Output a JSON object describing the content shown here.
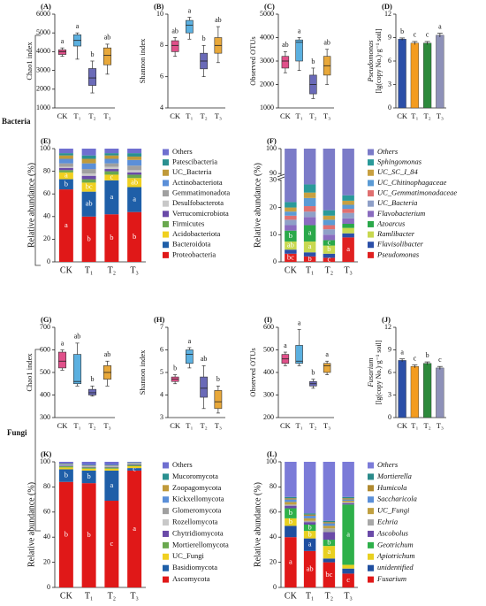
{
  "side_labels": [
    "Bacteria",
    "Fungi"
  ],
  "chart_data": [
    {
      "type": "box",
      "panel": "(A)",
      "ylabel": "Chao1 index",
      "categories": [
        "CK",
        "T₁",
        "T₂",
        "T₃"
      ],
      "colors": [
        "#e0508a",
        "#5bb0e0",
        "#6a6ab8",
        "#e8a83a"
      ],
      "ylim": [
        1000,
        6000
      ],
      "yticks": [
        1000,
        2000,
        3000,
        4000,
        5000,
        6000
      ],
      "stats": [
        {
          "min": 3750,
          "q1": 3850,
          "median": 4000,
          "q3": 4100,
          "max": 4200
        },
        {
          "min": 3600,
          "q1": 4300,
          "median": 4600,
          "q3": 4900,
          "max": 5000
        },
        {
          "min": 1800,
          "q1": 2200,
          "median": 2600,
          "q3": 3100,
          "max": 3500
        },
        {
          "min": 2800,
          "q1": 3300,
          "median": 3800,
          "q3": 4200,
          "max": 4400
        }
      ],
      "letters": [
        "a",
        "a",
        "b",
        "ab"
      ]
    },
    {
      "type": "box",
      "panel": "(B)",
      "ylabel": "Shannon index",
      "categories": [
        "CK",
        "T₁",
        "T₂",
        "T₃"
      ],
      "colors": [
        "#e0508a",
        "#5bb0e0",
        "#6a6ab8",
        "#e8a83a"
      ],
      "ylim": [
        4,
        10
      ],
      "yticks": [
        4,
        6,
        8,
        10
      ],
      "stats": [
        {
          "min": 7.3,
          "q1": 7.6,
          "median": 8,
          "q3": 8.3,
          "max": 8.5
        },
        {
          "min": 8.4,
          "q1": 8.8,
          "median": 9.3,
          "q3": 9.6,
          "max": 9.8
        },
        {
          "min": 6,
          "q1": 6.5,
          "median": 7,
          "q3": 7.5,
          "max": 8
        },
        {
          "min": 6.9,
          "q1": 7.5,
          "median": 8,
          "q3": 8.5,
          "max": 9.2
        }
      ],
      "letters": [
        "ab",
        "a",
        "b",
        "ab"
      ]
    },
    {
      "type": "box",
      "panel": "(C)",
      "ylabel": "Observed OTUs",
      "categories": [
        "CK",
        "T₁",
        "T₂",
        "T₃"
      ],
      "colors": [
        "#e0508a",
        "#5bb0e0",
        "#6a6ab8",
        "#e8a83a"
      ],
      "ylim": [
        1000,
        5000
      ],
      "yticks": [
        1000,
        2000,
        3000,
        4000,
        5000
      ],
      "stats": [
        {
          "min": 2500,
          "q1": 2700,
          "median": 3000,
          "q3": 3200,
          "max": 3400
        },
        {
          "min": 2600,
          "q1": 3000,
          "median": 3800,
          "q3": 3900,
          "max": 4000
        },
        {
          "min": 1400,
          "q1": 1600,
          "median": 2000,
          "q3": 2400,
          "max": 2700
        },
        {
          "min": 2000,
          "q1": 2400,
          "median": 2800,
          "q3": 3200,
          "max": 3500
        }
      ],
      "letters": [
        "ab",
        "a",
        "b",
        "ab"
      ]
    },
    {
      "type": "bar",
      "panel": "(D)",
      "ylabel": "Pseudomonas",
      "ylabel_unit": "[lg(copy No.)·g⁻¹ soil]",
      "categories": [
        "CK",
        "T₁",
        "T₂",
        "T₃"
      ],
      "colors": [
        "#2b4fa8",
        "#f39c20",
        "#2d8a3c",
        "#8e91b8"
      ],
      "ylim": [
        0,
        12
      ],
      "yticks": [
        0,
        3,
        6,
        9,
        12
      ],
      "values": [
        8.8,
        8.3,
        8.3,
        9.3
      ],
      "errors": [
        0.15,
        0.2,
        0.2,
        0.25
      ],
      "letters": [
        "b",
        "c",
        "c",
        "a"
      ]
    },
    {
      "type": "stacked_bar",
      "panel": "(E)",
      "ylabel": "Relative abundance (%)",
      "categories": [
        "CK",
        "T₁",
        "T₂",
        "T₃"
      ],
      "ylim": [
        0,
        100
      ],
      "yticks": [
        0,
        20,
        40,
        60,
        80,
        100
      ],
      "legend_italic": false,
      "series": [
        {
          "name": "Others",
          "color": "#6f6fd0",
          "values": [
            4,
            6,
            4,
            4
          ]
        },
        {
          "name": "Patescibacteria",
          "color": "#2a9090",
          "values": [
            2,
            3,
            2,
            3
          ]
        },
        {
          "name": "UC_Bacteria",
          "color": "#c09a3a",
          "values": [
            3,
            4,
            3,
            3
          ]
        },
        {
          "name": "Actinobacteriota",
          "color": "#5b8fd8",
          "values": [
            4,
            5,
            4,
            5
          ]
        },
        {
          "name": "Gemmatimonadota",
          "color": "#a0a0a0",
          "values": [
            3,
            4,
            3,
            4
          ]
        },
        {
          "name": "Desulfobacterota",
          "color": "#c8c8c8",
          "values": [
            1,
            2,
            2,
            2
          ]
        },
        {
          "name": "Verrucomicrobiota",
          "color": "#6a4aa8",
          "values": [
            2,
            3,
            2,
            2
          ]
        },
        {
          "name": "Firmicutes",
          "color": "#6aa84f",
          "values": [
            2,
            3,
            3,
            3
          ]
        },
        {
          "name": "Acidobacteriota",
          "color": "#f0d020",
          "values": [
            6,
            8,
            5,
            8
          ],
          "letters": [
            "a",
            "bc",
            "c",
            "ab"
          ]
        },
        {
          "name": "Bacteroidota",
          "color": "#1f5fa8",
          "values": [
            9,
            22,
            30,
            22
          ],
          "letters": [
            "b",
            "ab",
            "a",
            "a"
          ]
        },
        {
          "name": "Proteobacteria",
          "color": "#e01818",
          "values": [
            64,
            40,
            42,
            44
          ],
          "letters": [
            "a",
            "b",
            "b",
            "b"
          ]
        }
      ]
    },
    {
      "type": "stacked_bar",
      "panel": "(F)",
      "ylabel": "Relative abundance (%)",
      "categories": [
        "CK",
        "T₁",
        "T₂",
        "T₃"
      ],
      "ylim": [
        0,
        100
      ],
      "ybreak": [
        30,
        90
      ],
      "yticks": [
        0,
        10,
        20,
        30,
        90,
        100
      ],
      "legend_italic": true,
      "series": [
        {
          "name": "Others",
          "color": "#7b7bc8",
          "values": [
            78,
            71.5,
            81,
            75.5
          ]
        },
        {
          "name": "Sphingomonas",
          "color": "#2a9a9a",
          "values": [
            2,
            3,
            2,
            2
          ]
        },
        {
          "name": "UC_SC_I_84",
          "color": "#c8a040",
          "values": [
            1.5,
            2,
            1.5,
            1.5
          ]
        },
        {
          "name": "UC_Chitinophagaceae",
          "color": "#5b9bd5",
          "values": [
            1.5,
            3,
            2,
            1.5
          ]
        },
        {
          "name": "UC_Gemmatimonadaceae",
          "color": "#e07070",
          "values": [
            1.5,
            2,
            1.5,
            1.5
          ]
        },
        {
          "name": "UC_Bacteria",
          "color": "#8fa0c8",
          "values": [
            2,
            2,
            2,
            2
          ]
        },
        {
          "name": "Flavobacterium",
          "color": "#8a6cc0",
          "values": [
            2,
            3,
            2,
            2
          ]
        },
        {
          "name": "Azoarcus",
          "color": "#2aa84a",
          "values": [
            4,
            6,
            2,
            1.5
          ],
          "letters": [
            "b",
            "a",
            "c",
            null
          ]
        },
        {
          "name": "Ramlibacter",
          "color": "#c8d850",
          "values": [
            3,
            4,
            3,
            2
          ],
          "letters": [
            "ab",
            "a",
            "b",
            null
          ]
        },
        {
          "name": "Flavisolibacter",
          "color": "#2b4fa8",
          "values": [
            1.5,
            1.5,
            1.5,
            1.5
          ]
        },
        {
          "name": "Pseudomonas",
          "color": "#e02020",
          "values": [
            3,
            2,
            1.5,
            9
          ],
          "letters": [
            "bc",
            "b",
            "c",
            "a"
          ]
        }
      ]
    },
    {
      "type": "box",
      "panel": "(G)",
      "ylabel": "Chao1 index",
      "categories": [
        "CK",
        "T₁",
        "T₂",
        "T₃"
      ],
      "colors": [
        "#e0508a",
        "#5bb0e0",
        "#6a6ab8",
        "#e8a83a"
      ],
      "ylim": [
        300,
        700
      ],
      "yticks": [
        300,
        400,
        500,
        600,
        700
      ],
      "stats": [
        {
          "min": 510,
          "q1": 520,
          "median": 550,
          "q3": 590,
          "max": 600
        },
        {
          "min": 440,
          "q1": 450,
          "median": 460,
          "q3": 580,
          "max": 630
        },
        {
          "min": 395,
          "q1": 400,
          "median": 410,
          "q3": 425,
          "max": 440
        },
        {
          "min": 440,
          "q1": 470,
          "median": 500,
          "q3": 530,
          "max": 550
        }
      ],
      "letters": [
        "a",
        "ab",
        "b",
        "ab"
      ]
    },
    {
      "type": "box",
      "panel": "(H)",
      "ylabel": "Shannon index",
      "categories": [
        "CK",
        "T₁",
        "T₂",
        "T₃"
      ],
      "colors": [
        "#e0508a",
        "#5bb0e0",
        "#6a6ab8",
        "#e8a83a"
      ],
      "ylim": [
        3,
        7
      ],
      "yticks": [
        3,
        4,
        5,
        6,
        7
      ],
      "stats": [
        {
          "min": 4.5,
          "q1": 4.6,
          "median": 4.7,
          "q3": 4.8,
          "max": 4.9
        },
        {
          "min": 5.2,
          "q1": 5.4,
          "median": 5.8,
          "q3": 6,
          "max": 6.1
        },
        {
          "min": 3.4,
          "q1": 3.9,
          "median": 4.3,
          "q3": 4.8,
          "max": 5.3
        },
        {
          "min": 3.2,
          "q1": 3.4,
          "median": 3.7,
          "q3": 4.2,
          "max": 4.4
        }
      ],
      "letters": [
        "b",
        "a",
        "ab",
        "b"
      ]
    },
    {
      "type": "box",
      "panel": "(I)",
      "ylabel": "Observed OTUs",
      "categories": [
        "CK",
        "T₁",
        "T₂",
        "T₃"
      ],
      "colors": [
        "#e0508a",
        "#5bb0e0",
        "#6a6ab8",
        "#e8a83a"
      ],
      "ylim": [
        200,
        600
      ],
      "yticks": [
        200,
        300,
        400,
        500,
        600
      ],
      "stats": [
        {
          "min": 430,
          "q1": 440,
          "median": 460,
          "q3": 480,
          "max": 490
        },
        {
          "min": 430,
          "q1": 440,
          "median": 450,
          "q3": 520,
          "max": 590
        },
        {
          "min": 330,
          "q1": 340,
          "median": 350,
          "q3": 360,
          "max": 370
        },
        {
          "min": 390,
          "q1": 400,
          "median": 430,
          "q3": 440,
          "max": 450
        }
      ],
      "letters": [
        "a",
        "a",
        "b",
        "a"
      ]
    },
    {
      "type": "bar",
      "panel": "(J)",
      "ylabel": "Fusarium",
      "ylabel_unit": "[lg(copy No.)·g⁻¹ soil]",
      "categories": [
        "CK",
        "T₁",
        "T₂",
        "T₃"
      ],
      "colors": [
        "#2b4fa8",
        "#f39c20",
        "#2d8a3c",
        "#8e91b8"
      ],
      "ylim": [
        0,
        12
      ],
      "yticks": [
        0,
        3,
        6,
        9,
        12
      ],
      "values": [
        7.6,
        6.8,
        7.2,
        6.6
      ],
      "errors": [
        0.2,
        0.2,
        0.2,
        0.2
      ],
      "letters": [
        "a",
        "c",
        "b",
        "c"
      ]
    },
    {
      "type": "stacked_bar",
      "panel": "(K)",
      "ylabel": "Relative abundance (%)",
      "categories": [
        "CK",
        "T₁",
        "T₂",
        "T₃"
      ],
      "ylim": [
        0,
        100
      ],
      "yticks": [
        0,
        20,
        40,
        60,
        80,
        100
      ],
      "legend_italic": false,
      "series": [
        {
          "name": "Others",
          "color": "#6f6fd0",
          "values": [
            1.5,
            2.5,
            2.5,
            0.5
          ]
        },
        {
          "name": "Mucoromycota",
          "color": "#2a9090",
          "values": [
            0.3,
            0.3,
            0.3,
            0.3
          ]
        },
        {
          "name": "Zoopagomycota",
          "color": "#c09a3a",
          "values": [
            0.3,
            0.3,
            0.3,
            0.3
          ]
        },
        {
          "name": "Kickxellomycota",
          "color": "#5b8fd8",
          "values": [
            0.3,
            0.3,
            0.3,
            0.3
          ]
        },
        {
          "name": "Glomeromycota",
          "color": "#a0a0a0",
          "values": [
            0.3,
            0.3,
            0.3,
            0.3
          ]
        },
        {
          "name": "Rozellomycota",
          "color": "#c8c8c8",
          "values": [
            0.3,
            0.3,
            0.3,
            0.3
          ]
        },
        {
          "name": "Chytridiomycota",
          "color": "#6a4aa8",
          "values": [
            0.5,
            0.5,
            0.5,
            0.5
          ]
        },
        {
          "name": "Mortierellomycota",
          "color": "#6aa84f",
          "values": [
            1,
            1,
            1,
            1
          ]
        },
        {
          "name": "UC_Fungi",
          "color": "#f0d020",
          "values": [
            1.5,
            1.5,
            1.5,
            1.5
          ]
        },
        {
          "name": "Basidiomycota",
          "color": "#1f5fa8",
          "values": [
            10,
            10,
            24,
            2
          ],
          "letters": [
            "b",
            "b",
            "a",
            "c"
          ]
        },
        {
          "name": "Ascomycota",
          "color": "#e01818",
          "values": [
            84,
            83,
            69,
            93
          ],
          "letters": [
            "b",
            "b",
            "c",
            "a"
          ]
        }
      ]
    },
    {
      "type": "stacked_bar",
      "panel": "(L)",
      "ylabel": "Relative abundance (%)",
      "categories": [
        "CK",
        "T₁",
        "T₂",
        "T₃"
      ],
      "ylim": [
        0,
        100
      ],
      "yticks": [
        0,
        20,
        40,
        60,
        80,
        100
      ],
      "legend_italic": true,
      "series": [
        {
          "name": "Others",
          "color": "#7b7bd8",
          "values": [
            28,
            41,
            47,
            28
          ]
        },
        {
          "name": "Mortierella",
          "color": "#2a8a8a",
          "values": [
            1,
            1,
            1,
            1
          ]
        },
        {
          "name": "Humicola",
          "color": "#b08a30",
          "values": [
            1,
            1,
            1,
            1
          ]
        },
        {
          "name": "Saccharicola",
          "color": "#5b8fd8",
          "values": [
            2,
            2,
            2,
            1
          ]
        },
        {
          "name": "UC_Fungi",
          "color": "#c0a040",
          "values": [
            2,
            2,
            2,
            1
          ]
        },
        {
          "name": "Echria",
          "color": "#a8a8a8",
          "values": [
            1,
            1,
            3,
            1
          ]
        },
        {
          "name": "Ascobolus",
          "color": "#6a4aa8",
          "values": [
            2,
            2,
            6,
            1
          ]
        },
        {
          "name": "Geotrichum",
          "color": "#2eb04a",
          "values": [
            8,
            5,
            5,
            48
          ],
          "letters": [
            "b",
            "b",
            "b",
            "a"
          ]
        },
        {
          "name": "Apiotrichum",
          "color": "#e8d020",
          "values": [
            6,
            6,
            10,
            3
          ],
          "letters": [
            "b",
            "b",
            "a",
            null
          ]
        },
        {
          "name": "unidentified",
          "color": "#1f4fa0",
          "values": [
            9,
            10,
            3,
            4
          ],
          "letters": [
            null,
            "a",
            null,
            null
          ]
        },
        {
          "name": "Fusarium",
          "color": "#e01818",
          "values": [
            40,
            29,
            20,
            11
          ],
          "letters": [
            "a",
            "ab",
            "bc",
            "c"
          ]
        }
      ]
    }
  ]
}
